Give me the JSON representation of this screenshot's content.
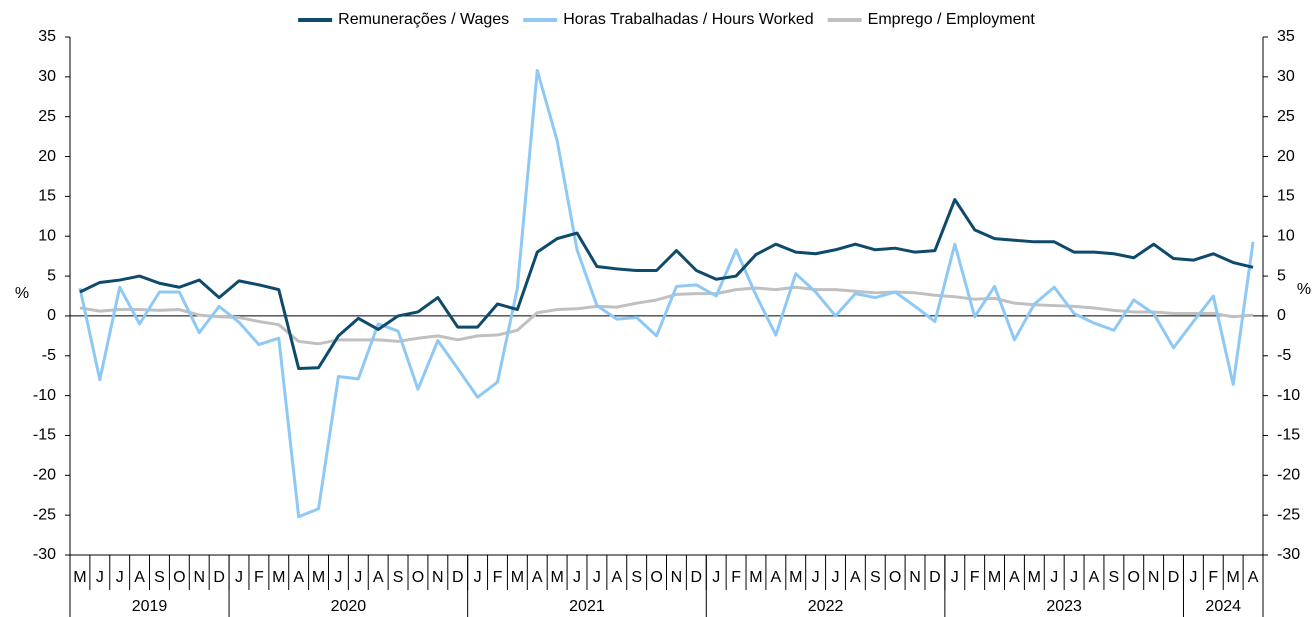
{
  "chart_data": {
    "type": "line",
    "categories": [
      "M",
      "J",
      "J",
      "A",
      "S",
      "O",
      "N",
      "D",
      "J",
      "F",
      "M",
      "A",
      "M",
      "J",
      "J",
      "A",
      "S",
      "O",
      "N",
      "D",
      "J",
      "F",
      "M",
      "A",
      "M",
      "J",
      "J",
      "A",
      "S",
      "O",
      "N",
      "D",
      "J",
      "F",
      "M",
      "A",
      "M",
      "J",
      "J",
      "A",
      "S",
      "O",
      "N",
      "D",
      "J",
      "F",
      "M",
      "A",
      "M",
      "J",
      "J",
      "A",
      "S",
      "O",
      "N",
      "D",
      "J",
      "F",
      "M",
      "A"
    ],
    "category_groups": [
      {
        "label": "2019",
        "count": 8
      },
      {
        "label": "2020",
        "count": 12
      },
      {
        "label": "2021",
        "count": 12
      },
      {
        "label": "2022",
        "count": 12
      },
      {
        "label": "2023",
        "count": 12
      },
      {
        "label": "2024",
        "count": 4
      }
    ],
    "series": [
      {
        "name": "Remunerações / Wages",
        "color": "#0d4a6b",
        "values": [
          3,
          4.2,
          4.5,
          5,
          4.1,
          3.6,
          4.5,
          2.3,
          4.4,
          3.9,
          3.3,
          -6.6,
          -6.5,
          -2.5,
          -0.3,
          -1.7,
          0,
          0.5,
          2.3,
          -1.4,
          -1.4,
          1.5,
          0.8,
          8,
          9.7,
          10.4,
          6.2,
          5.9,
          5.7,
          5.7,
          8.2,
          5.7,
          4.6,
          5,
          7.7,
          9,
          8,
          7.8,
          8.3,
          9,
          8.3,
          8.5,
          8,
          8.2,
          14.6,
          10.8,
          9.7,
          9.5,
          9.3,
          9.3,
          8,
          8,
          7.8,
          7.3,
          9,
          7.2,
          7,
          7.8,
          6.7,
          6.1
        ]
      },
      {
        "name": "Horas Trabalhadas / Hours Worked",
        "color": "#8ec9f5",
        "values": [
          3.5,
          -8,
          3.6,
          -1,
          3,
          3,
          -2.1,
          1.2,
          -0.8,
          -3.6,
          -2.8,
          -25.2,
          -24.2,
          -7.6,
          -7.9,
          -1,
          -1.9,
          -9.2,
          -3.1,
          -6.6,
          -10.2,
          -8.3,
          3.5,
          30.8,
          22,
          8.3,
          1.3,
          -0.4,
          -0.2,
          -2.5,
          3.7,
          3.9,
          2.5,
          8.3,
          2.6,
          -2.4,
          5.3,
          3,
          0,
          2.8,
          2.3,
          3,
          1.2,
          -0.7,
          9,
          -0.1,
          3.7,
          -3,
          1.5,
          3.6,
          0.3,
          -0.9,
          -1.8,
          2,
          0.3,
          -4,
          -0.7,
          2.5,
          -8.6,
          9.3
        ]
      },
      {
        "name": "Emprego / Employment",
        "color": "#c0c0c0",
        "values": [
          1,
          0.6,
          0.8,
          0.8,
          0.7,
          0.8,
          0.1,
          -0.1,
          -0.2,
          -0.7,
          -1.1,
          -3.2,
          -3.5,
          -3,
          -3,
          -3,
          -3.2,
          -2.8,
          -2.5,
          -3,
          -2.5,
          -2.4,
          -1.8,
          0.4,
          0.8,
          0.9,
          1.2,
          1.1,
          1.6,
          2,
          2.7,
          2.8,
          2.8,
          3.3,
          3.5,
          3.3,
          3.6,
          3.3,
          3.3,
          3.1,
          2.9,
          3,
          2.9,
          2.6,
          2.4,
          2.1,
          2.2,
          1.6,
          1.4,
          1.3,
          1.2,
          1,
          0.7,
          0.5,
          0.5,
          0.3,
          0.3,
          0.3,
          -0.1,
          0.1
        ]
      }
    ],
    "y_label": "%",
    "y2_label": "%",
    "ylim": [
      -30,
      35
    ],
    "yticks": [
      -30,
      -25,
      -20,
      -15,
      -10,
      -5,
      0,
      5,
      10,
      15,
      20,
      25,
      30,
      35
    ],
    "y2lim": [
      -30,
      35
    ],
    "y2ticks": [
      -30,
      -25,
      -20,
      -15,
      -10,
      -5,
      0,
      5,
      10,
      15,
      20,
      25,
      30,
      35
    ],
    "legend": "top"
  }
}
